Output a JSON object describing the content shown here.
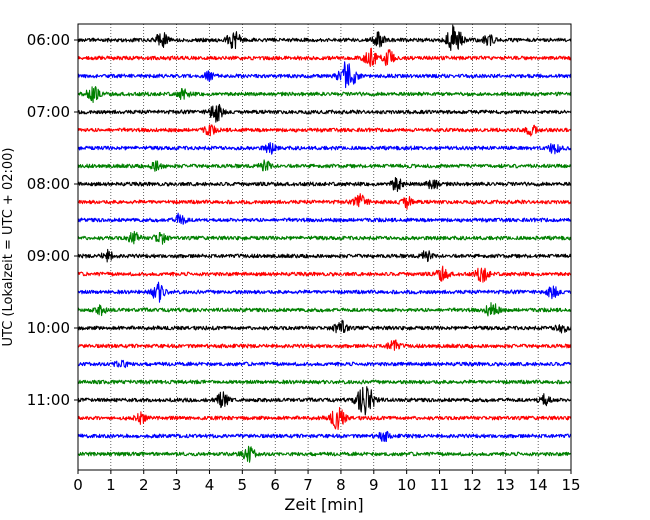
{
  "chart_data": {
    "type": "line",
    "subtype": "helicorder",
    "title": "",
    "xlabel": "Zeit  [min]",
    "ylabel": "UTC (Lokalzeit = UTC + 02:00)",
    "xlim": [
      0,
      15
    ],
    "x_ticks": [
      "0",
      "1",
      "2",
      "3",
      "4",
      "5",
      "6",
      "7",
      "8",
      "9",
      "10",
      "11",
      "12",
      "13",
      "14",
      "15"
    ],
    "y_tick_labels": [
      "06:00",
      "07:00",
      "08:00",
      "09:00",
      "10:00",
      "11:00"
    ],
    "trace_interval_min": 15,
    "trace_colors": [
      "#000000",
      "#ff0000",
      "#0000ff",
      "#008000"
    ],
    "grid": "vertical dotted lines at each minute",
    "rows": [
      {
        "start": "06:00",
        "color": "#000000",
        "events": [
          {
            "t": 2.55,
            "amp": 0.45
          },
          {
            "t": 4.75,
            "amp": 0.55
          },
          {
            "t": 9.15,
            "amp": 0.4
          },
          {
            "t": 11.45,
            "amp": 0.85
          },
          {
            "t": 12.5,
            "amp": 0.3
          }
        ]
      },
      {
        "start": "06:15",
        "color": "#ff0000",
        "events": [
          {
            "t": 8.9,
            "amp": 0.55
          },
          {
            "t": 9.45,
            "amp": 0.45
          }
        ]
      },
      {
        "start": "06:30",
        "color": "#0000ff",
        "events": [
          {
            "t": 8.2,
            "amp": 0.9
          },
          {
            "t": 4.0,
            "amp": 0.25
          }
        ]
      },
      {
        "start": "06:45",
        "color": "#008000",
        "events": [
          {
            "t": 0.45,
            "amp": 0.45
          },
          {
            "t": 3.2,
            "amp": 0.3
          }
        ]
      },
      {
        "start": "07:00",
        "color": "#000000",
        "events": [
          {
            "t": 4.2,
            "amp": 0.55
          }
        ]
      },
      {
        "start": "07:15",
        "color": "#ff0000",
        "events": [
          {
            "t": 4.0,
            "amp": 0.3
          },
          {
            "t": 13.8,
            "amp": 0.3
          }
        ]
      },
      {
        "start": "07:30",
        "color": "#0000ff",
        "events": [
          {
            "t": 5.85,
            "amp": 0.3
          },
          {
            "t": 14.5,
            "amp": 0.35
          }
        ]
      },
      {
        "start": "07:45",
        "color": "#008000",
        "events": [
          {
            "t": 2.4,
            "amp": 0.3
          },
          {
            "t": 5.7,
            "amp": 0.3
          }
        ]
      },
      {
        "start": "08:00",
        "color": "#000000",
        "events": [
          {
            "t": 9.7,
            "amp": 0.4
          },
          {
            "t": 10.8,
            "amp": 0.35
          }
        ]
      },
      {
        "start": "08:15",
        "color": "#ff0000",
        "events": [
          {
            "t": 8.6,
            "amp": 0.45
          },
          {
            "t": 10.0,
            "amp": 0.35
          }
        ]
      },
      {
        "start": "08:30",
        "color": "#0000ff",
        "events": [
          {
            "t": 3.1,
            "amp": 0.35
          }
        ]
      },
      {
        "start": "08:45",
        "color": "#008000",
        "events": [
          {
            "t": 1.7,
            "amp": 0.35
          },
          {
            "t": 2.5,
            "amp": 0.35
          }
        ]
      },
      {
        "start": "09:00",
        "color": "#000000",
        "events": [
          {
            "t": 0.9,
            "amp": 0.3
          },
          {
            "t": 10.6,
            "amp": 0.3
          }
        ]
      },
      {
        "start": "09:15",
        "color": "#ff0000",
        "events": [
          {
            "t": 11.1,
            "amp": 0.4
          },
          {
            "t": 12.3,
            "amp": 0.45
          }
        ]
      },
      {
        "start": "09:30",
        "color": "#0000ff",
        "events": [
          {
            "t": 2.45,
            "amp": 0.55
          },
          {
            "t": 14.45,
            "amp": 0.35
          }
        ]
      },
      {
        "start": "09:45",
        "color": "#008000",
        "events": [
          {
            "t": 12.6,
            "amp": 0.45
          },
          {
            "t": 0.7,
            "amp": 0.25
          }
        ]
      },
      {
        "start": "10:00",
        "color": "#000000",
        "events": [
          {
            "t": 8.0,
            "amp": 0.45
          },
          {
            "t": 14.7,
            "amp": 0.3
          }
        ]
      },
      {
        "start": "10:15",
        "color": "#ff0000",
        "events": [
          {
            "t": 9.6,
            "amp": 0.35
          }
        ]
      },
      {
        "start": "10:30",
        "color": "#0000ff",
        "events": [
          {
            "t": 1.3,
            "amp": 0.3
          }
        ]
      },
      {
        "start": "10:45",
        "color": "#008000",
        "events": []
      },
      {
        "start": "11:00",
        "color": "#000000",
        "events": [
          {
            "t": 8.75,
            "amp": 1.0
          },
          {
            "t": 4.4,
            "amp": 0.45
          },
          {
            "t": 14.2,
            "amp": 0.35
          }
        ]
      },
      {
        "start": "11:15",
        "color": "#ff0000",
        "events": [
          {
            "t": 7.9,
            "amp": 0.65
          },
          {
            "t": 1.9,
            "amp": 0.3
          }
        ]
      },
      {
        "start": "11:30",
        "color": "#0000ff",
        "events": [
          {
            "t": 9.3,
            "amp": 0.3
          }
        ]
      },
      {
        "start": "11:45",
        "color": "#008000",
        "events": [
          {
            "t": 5.2,
            "amp": 0.45
          }
        ]
      }
    ]
  }
}
